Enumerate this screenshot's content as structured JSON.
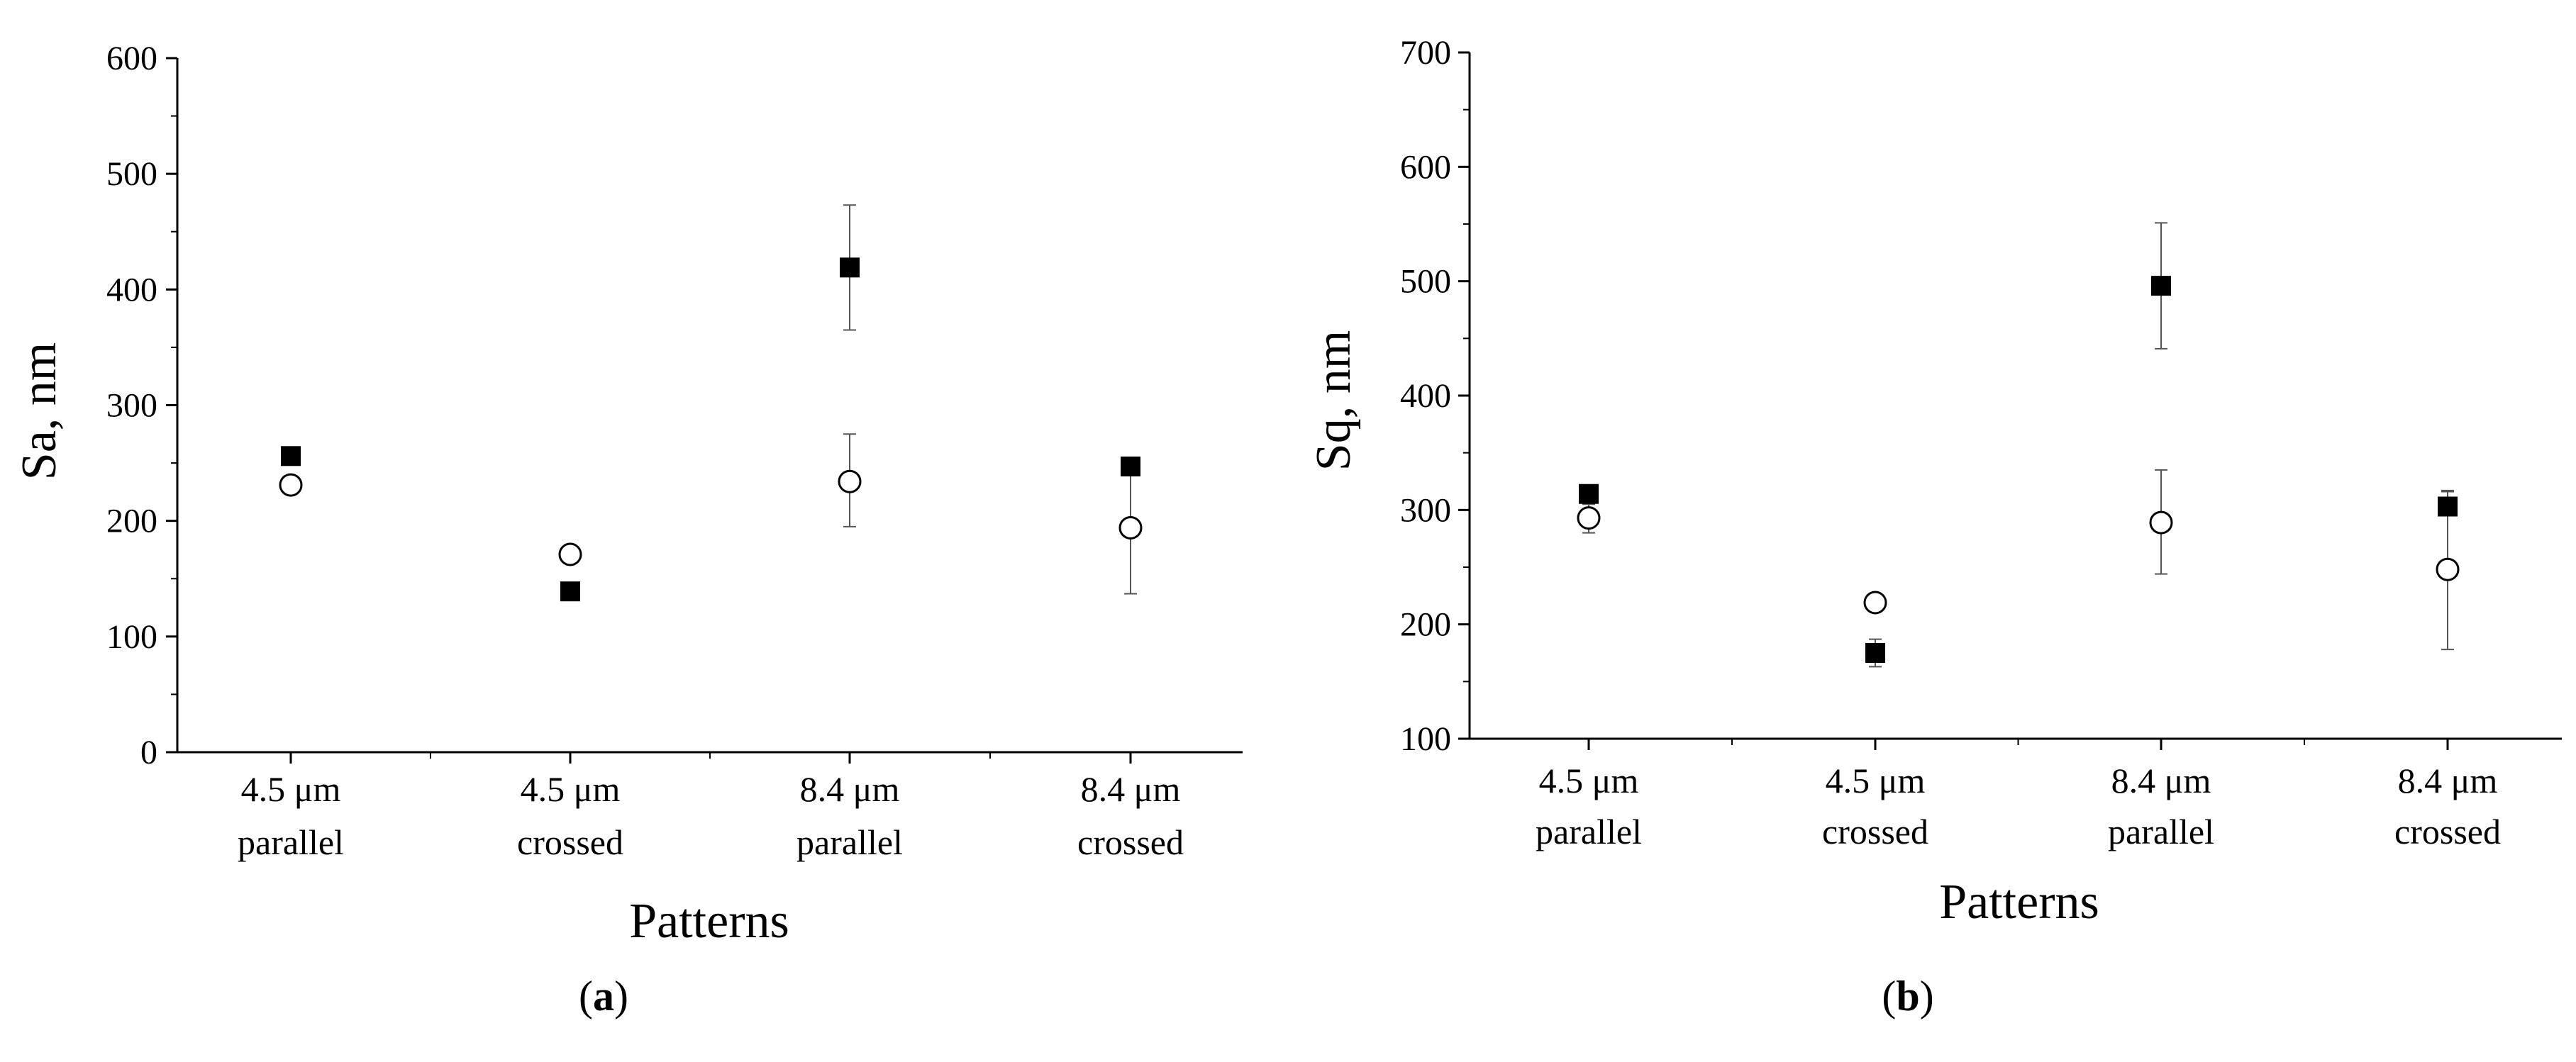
{
  "figure": {
    "panels": [
      {
        "id": "a",
        "label_open": "(",
        "label_letter": "a",
        "label_close": ")"
      },
      {
        "id": "b",
        "label_open": "(",
        "label_letter": "b",
        "label_close": ")"
      }
    ]
  },
  "chart_data": [
    {
      "type": "scatter",
      "title": "",
      "xlabel": "Patterns",
      "ylabel": "Sa, nm",
      "ylim": [
        0,
        600
      ],
      "yticks": [
        0,
        100,
        200,
        300,
        400,
        500,
        600
      ],
      "categories": [
        [
          "4.5 μm",
          "parallel"
        ],
        [
          "4.5 μm",
          "crossed"
        ],
        [
          "8.4 μm",
          "parallel"
        ],
        [
          "8.4 μm",
          "crossed"
        ]
      ],
      "grid": false,
      "legend": "none",
      "series": [
        {
          "marker": "filled-square",
          "color": "#000000",
          "values": [
            256,
            139,
            419,
            247
          ],
          "error": [
            null,
            null,
            [
              365,
              473
            ],
            null
          ]
        },
        {
          "marker": "open-circle",
          "color": "#000000",
          "values": [
            231,
            171,
            234,
            194
          ],
          "error": [
            null,
            null,
            [
              195,
              275
            ],
            [
              137,
              250
            ]
          ]
        }
      ]
    },
    {
      "type": "scatter",
      "title": "",
      "xlabel": "Patterns",
      "ylabel": "Sq, nm",
      "ylim": [
        100,
        700
      ],
      "yticks": [
        100,
        200,
        300,
        400,
        500,
        600,
        700
      ],
      "categories": [
        [
          "4.5 μm",
          "parallel"
        ],
        [
          "4.5 μm",
          "crossed"
        ],
        [
          "8.4 μm",
          "parallel"
        ],
        [
          "8.4 μm",
          "crossed"
        ]
      ],
      "grid": false,
      "legend": "none",
      "series": [
        {
          "marker": "filled-square",
          "color": "#000000",
          "values": [
            314,
            175,
            496,
            303
          ],
          "error": [
            null,
            [
              163,
              187
            ],
            [
              441,
              551
            ],
            [
              300,
              317
            ]
          ]
        },
        {
          "marker": "open-circle",
          "color": "#000000",
          "values": [
            293,
            219,
            289,
            248
          ],
          "error": [
            [
              280,
              305
            ],
            null,
            [
              244,
              335
            ],
            [
              178,
              316
            ]
          ]
        }
      ]
    }
  ]
}
